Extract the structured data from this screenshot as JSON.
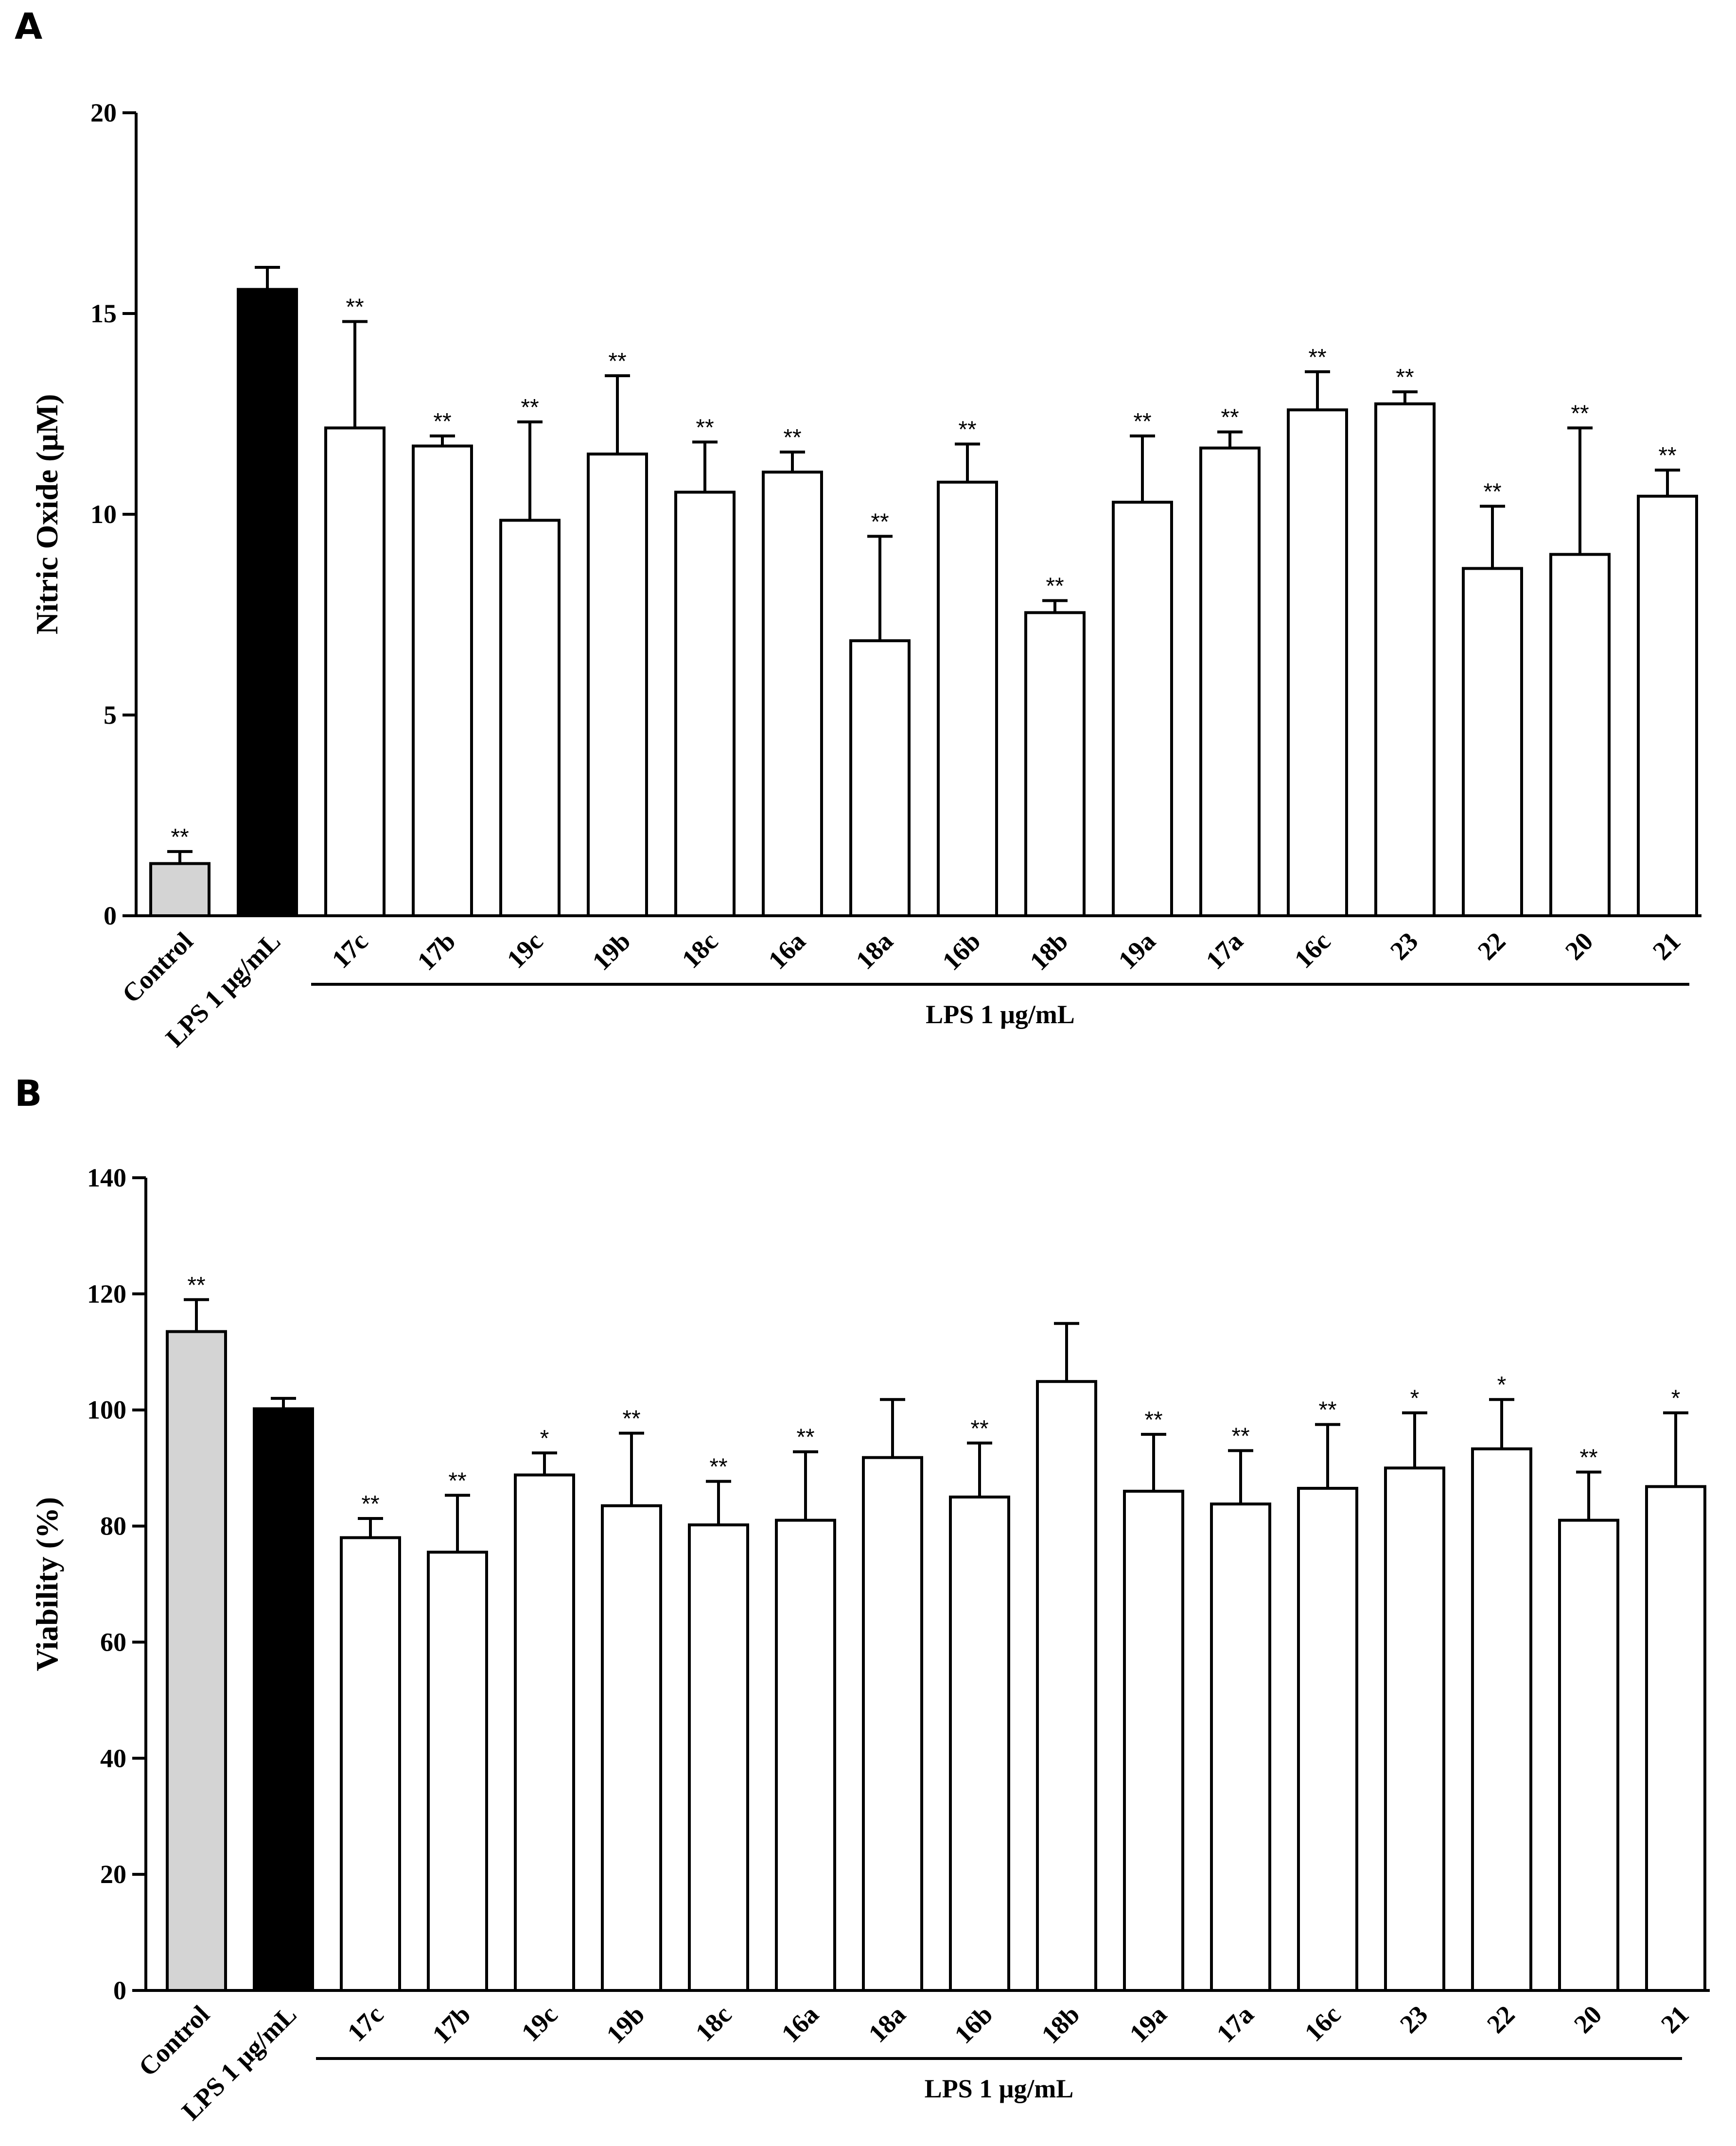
{
  "colors": {
    "control": "#d4d4d4",
    "lps": "#000000",
    "treated": "#ffffff",
    "stroke": "#000000"
  },
  "chart_data": [
    {
      "panel": "A",
      "type": "bar",
      "ylabel": "Nitric Oxide (μM)",
      "ylim": [
        0,
        20
      ],
      "yticks": [
        0,
        5,
        10,
        15,
        20
      ],
      "group_label": "LPS 1 μg/mL",
      "categories": [
        "Control",
        "LPS 1 μg/mL",
        "17c",
        "17b",
        "19c",
        "19b",
        "18c",
        "16a",
        "18a",
        "16b",
        "18b",
        "19a",
        "17a",
        "16c",
        "23",
        "22",
        "20",
        "21"
      ],
      "values": [
        1.3,
        15.6,
        12.15,
        11.7,
        9.85,
        11.5,
        10.55,
        11.05,
        6.85,
        10.8,
        7.55,
        10.3,
        11.65,
        12.6,
        12.75,
        8.65,
        9.0,
        10.45
      ],
      "errors": [
        0.3,
        0.55,
        2.65,
        0.25,
        2.45,
        1.95,
        1.25,
        0.5,
        2.6,
        0.95,
        0.3,
        1.65,
        0.4,
        0.95,
        0.3,
        1.55,
        3.15,
        0.65
      ],
      "significance": [
        "**",
        "",
        "**",
        "**",
        "**",
        "**",
        "**",
        "**",
        "**",
        "**",
        "**",
        "**",
        "**",
        "**",
        "**",
        "**",
        "**",
        "**"
      ],
      "fills": [
        "control",
        "lps",
        "treated",
        "treated",
        "treated",
        "treated",
        "treated",
        "treated",
        "treated",
        "treated",
        "treated",
        "treated",
        "treated",
        "treated",
        "treated",
        "treated",
        "treated",
        "treated"
      ]
    },
    {
      "panel": "B",
      "type": "bar",
      "ylabel": "Viability (%)",
      "ylim": [
        0,
        140
      ],
      "yticks": [
        0,
        20,
        40,
        60,
        80,
        100,
        120,
        140
      ],
      "group_label": "LPS 1 μg/mL",
      "categories": [
        "Control",
        "LPS 1 μg/mL",
        "17c",
        "17b",
        "19c",
        "19b",
        "18c",
        "16a",
        "18a",
        "16b",
        "18b",
        "19a",
        "17a",
        "16c",
        "23",
        "22",
        "20",
        "21"
      ],
      "values": [
        113.5,
        100.2,
        78.0,
        75.5,
        88.8,
        83.5,
        80.2,
        81.0,
        91.8,
        85.0,
        104.9,
        86.0,
        83.8,
        86.5,
        90.0,
        93.3,
        81.0,
        86.8
      ],
      "errors": [
        5.5,
        1.8,
        3.3,
        9.8,
        3.8,
        12.5,
        7.5,
        11.8,
        10.0,
        9.3,
        10.0,
        9.8,
        9.2,
        11.0,
        9.5,
        8.5,
        8.3,
        12.7
      ],
      "significance": [
        "**",
        "",
        "**",
        "**",
        "*",
        "**",
        "**",
        "**",
        "",
        "**",
        "",
        "**",
        "**",
        "**",
        "*",
        "*",
        "**",
        "*"
      ],
      "fills": [
        "control",
        "lps",
        "treated",
        "treated",
        "treated",
        "treated",
        "treated",
        "treated",
        "treated",
        "treated",
        "treated",
        "treated",
        "treated",
        "treated",
        "treated",
        "treated",
        "treated",
        "treated"
      ]
    }
  ]
}
